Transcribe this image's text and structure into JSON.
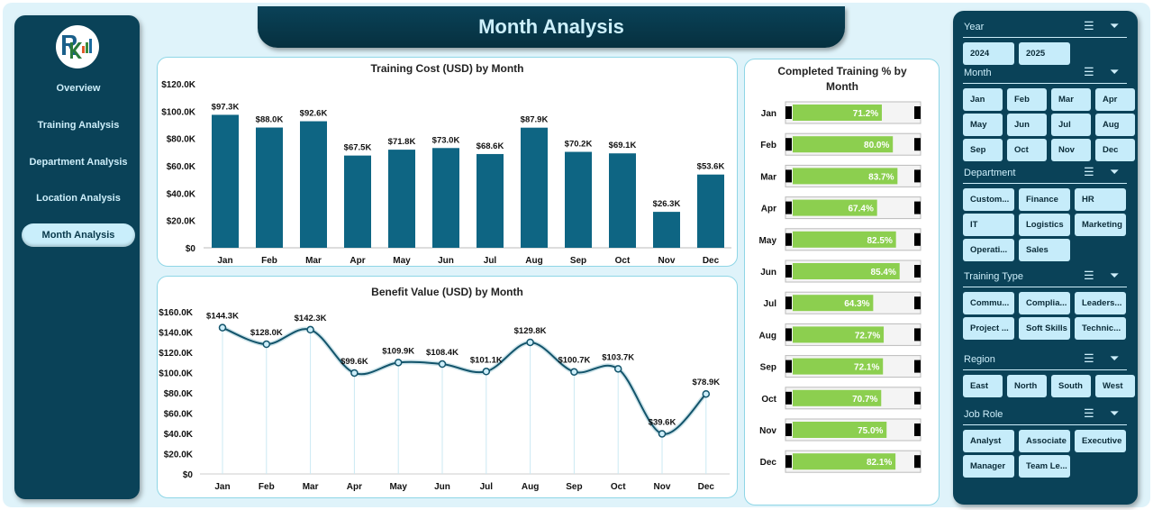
{
  "header": {
    "title": "Month Analysis"
  },
  "nav": {
    "items": [
      {
        "label": "Overview"
      },
      {
        "label": "Training Analysis"
      },
      {
        "label": "Department Analysis"
      },
      {
        "label": "Location Analysis"
      },
      {
        "label": "Month Analysis",
        "active": true
      }
    ]
  },
  "colors": {
    "bar": "#0e6583",
    "line": "#13546b",
    "progress": "#8ccf4f",
    "panel": "#0a4258",
    "chip": "#c6ecfa"
  },
  "chart_data": [
    {
      "type": "bar",
      "title": "Training Cost (USD) by Month",
      "categories": [
        "Jan",
        "Feb",
        "Mar",
        "Apr",
        "May",
        "Jun",
        "Jul",
        "Aug",
        "Sep",
        "Oct",
        "Nov",
        "Dec"
      ],
      "values": [
        97.3,
        88.0,
        92.6,
        67.5,
        71.8,
        73.0,
        68.6,
        87.9,
        70.2,
        69.1,
        26.3,
        53.6
      ],
      "labels": [
        "$97.3K",
        "$88.0K",
        "$92.6K",
        "$67.5K",
        "$71.8K",
        "$73.0K",
        "$68.6K",
        "$87.9K",
        "$70.2K",
        "$69.1K",
        "$26.3K",
        "$53.6K"
      ],
      "unit": "K USD",
      "ylim": [
        0,
        120
      ],
      "yticks": [
        "$0",
        "$20.0K",
        "$40.0K",
        "$60.0K",
        "$80.0K",
        "$100.0K",
        "$120.0K"
      ]
    },
    {
      "type": "line",
      "title": "Benefit Value (USD) by Month",
      "categories": [
        "Jan",
        "Feb",
        "Mar",
        "Apr",
        "May",
        "Jun",
        "Jul",
        "Aug",
        "Sep",
        "Oct",
        "Nov",
        "Dec"
      ],
      "values": [
        144.3,
        128.0,
        142.3,
        99.6,
        109.9,
        108.4,
        101.1,
        129.8,
        100.7,
        103.7,
        39.6,
        78.9
      ],
      "labels": [
        "$144.3K",
        "$128.0K",
        "$142.3K",
        "$99.6K",
        "$109.9K",
        "$108.4K",
        "$101.1K",
        "$129.8K",
        "$100.7K",
        "$103.7K",
        "$39.6K",
        "$78.9K"
      ],
      "unit": "K USD",
      "ylim": [
        0,
        160
      ],
      "yticks": [
        "$0",
        "$20.0K",
        "$40.0K",
        "$60.0K",
        "$80.0K",
        "$100.0K",
        "$120.0K",
        "$140.0K",
        "$160.0K"
      ]
    },
    {
      "type": "bar",
      "orientation": "horizontal",
      "title": "Completed Training % by Month",
      "categories": [
        "Jan",
        "Feb",
        "Mar",
        "Apr",
        "May",
        "Jun",
        "Jul",
        "Aug",
        "Sep",
        "Oct",
        "Nov",
        "Dec"
      ],
      "values": [
        71.2,
        80.0,
        83.7,
        67.4,
        82.5,
        85.4,
        64.3,
        72.7,
        72.1,
        70.7,
        75.0,
        82.1
      ],
      "labels": [
        "71.2%",
        "80.0%",
        "83.7%",
        "67.4%",
        "82.5%",
        "85.4%",
        "64.3%",
        "72.7%",
        "72.1%",
        "70.7%",
        "75.0%",
        "82.1%"
      ],
      "xlim": [
        0,
        100
      ]
    }
  ],
  "filters": [
    {
      "title": "Year",
      "cols": 2,
      "items": [
        "2024",
        "2025"
      ]
    },
    {
      "title": "Month",
      "cols": 4,
      "items": [
        "Jan",
        "Feb",
        "Mar",
        "Apr",
        "May",
        "Jun",
        "Jul",
        "Aug",
        "Sep",
        "Oct",
        "Nov",
        "Dec"
      ]
    },
    {
      "title": "Department",
      "cols": 3,
      "items": [
        "Custom...",
        "Finance",
        "HR",
        "IT",
        "Logistics",
        "Marketing",
        "Operati...",
        "Sales"
      ]
    },
    {
      "title": "Training Type",
      "cols": 3,
      "items": [
        "Commu...",
        "Complia...",
        "Leaders...",
        "Project ...",
        "Soft Skills",
        "Technic..."
      ]
    },
    {
      "title": "Region",
      "cols": 4,
      "items": [
        "East",
        "North",
        "South",
        "West"
      ]
    },
    {
      "title": "Job Role",
      "cols": 3,
      "items": [
        "Analyst",
        "Associate",
        "Executive",
        "Manager",
        "Team Le..."
      ]
    }
  ]
}
